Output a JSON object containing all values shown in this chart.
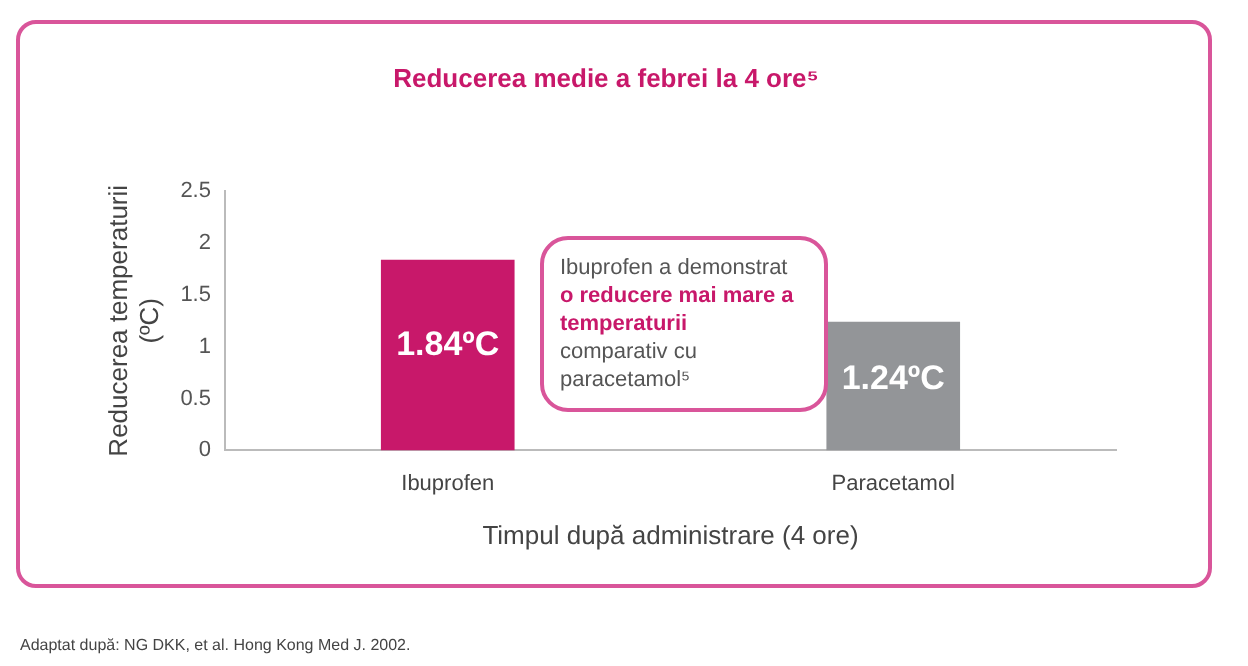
{
  "chart_data": {
    "type": "bar",
    "title": "Reducerea medie a febrei la 4 ore⁵",
    "xlabel": "Timpul după administrare (4 ore)",
    "ylabel": "Reducerea temperaturii (ºC)",
    "categories": [
      "Ibuprofen",
      "Paracetamol"
    ],
    "values": [
      1.84,
      1.24
    ],
    "colors": [
      "#c8186a",
      "#939598"
    ],
    "value_labels": [
      "1.84ºC",
      "1.24ºC"
    ],
    "ylim": [
      0,
      2.5
    ],
    "yticks": [
      0,
      0.5,
      1,
      1.5,
      2,
      2.5
    ],
    "grid": false,
    "legend": false,
    "annotations": [
      "Ibuprofen a demonstrat",
      "o reducere mai mare a temperaturii",
      "comparativ cu paracetamol⁵",
      "Adaptat după: NG DKK, et al. Hong Kong Med J. 2002."
    ]
  }
}
